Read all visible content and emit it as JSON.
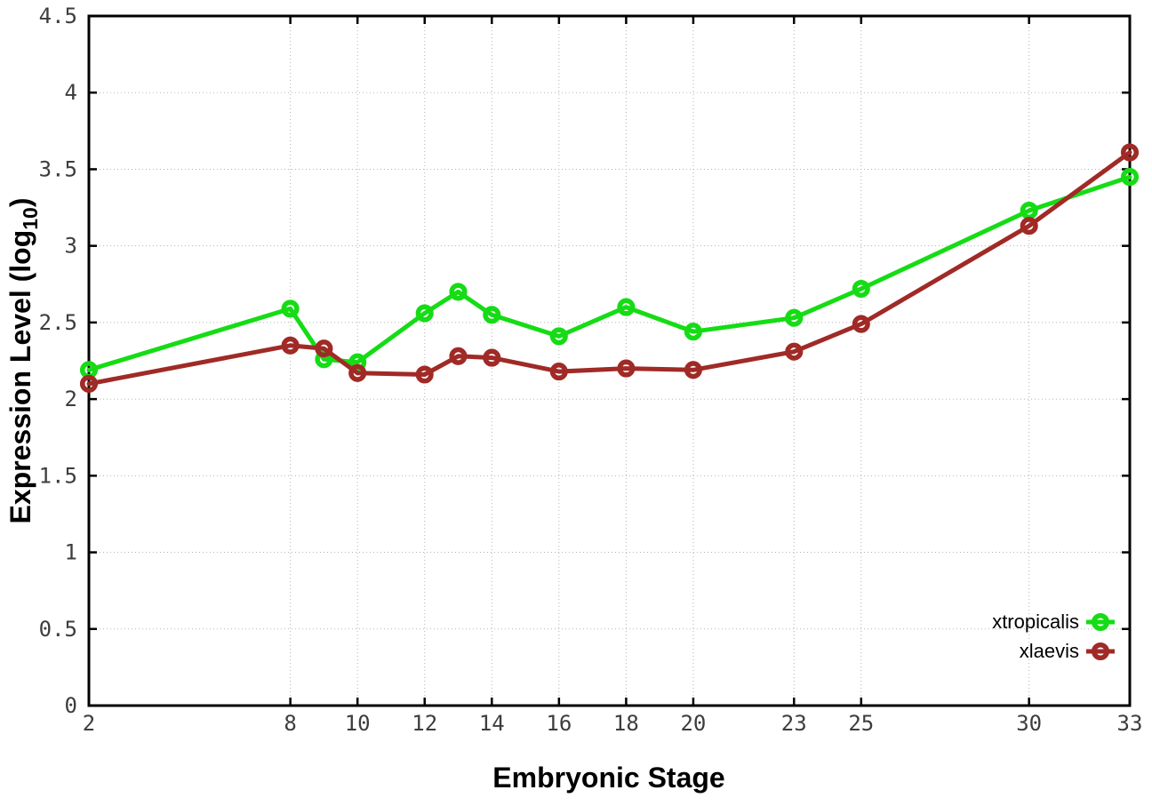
{
  "chart_data": {
    "type": "line",
    "title": "",
    "xlabel": "Embryonic Stage",
    "ylabel": "Expression Level (log10)",
    "ylabel_parts": {
      "pre": "Expression Level (log",
      "sub": "10",
      "post": ")"
    },
    "x": [
      2,
      8,
      9,
      10,
      12,
      13,
      14,
      16,
      18,
      20,
      23,
      25,
      30,
      33
    ],
    "series": [
      {
        "name": "xtropicalis",
        "color": "#15dc15",
        "values": [
          2.19,
          2.59,
          2.26,
          2.24,
          2.56,
          2.7,
          2.55,
          2.41,
          2.6,
          2.44,
          2.53,
          2.72,
          3.23,
          3.45
        ]
      },
      {
        "name": "xlaevis",
        "color": "#a02a26",
        "values": [
          2.1,
          2.35,
          2.33,
          2.17,
          2.16,
          2.28,
          2.27,
          2.18,
          2.2,
          2.19,
          2.31,
          2.49,
          3.13,
          3.61
        ]
      }
    ],
    "xlim": [
      2,
      33
    ],
    "ylim": [
      0,
      4.5
    ],
    "x_ticks": [
      2,
      8,
      10,
      12,
      14,
      16,
      18,
      20,
      23,
      25,
      30,
      33
    ],
    "y_ticks": [
      0,
      0.5,
      1,
      1.5,
      2,
      2.5,
      3,
      3.5,
      4,
      4.5
    ],
    "grid": true,
    "grid_color": "#b3b3b3",
    "border_color": "#000000",
    "background": "#ffffff",
    "legend_position": "inside-bottom-right",
    "marker": "open-circle"
  }
}
